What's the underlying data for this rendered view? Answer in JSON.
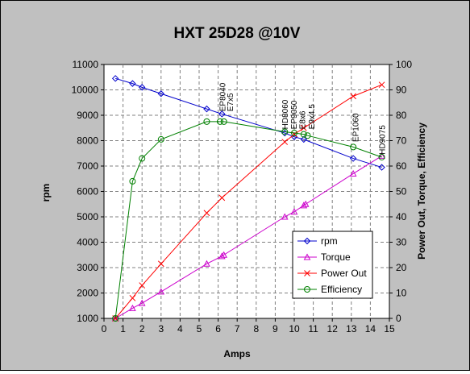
{
  "chart_data": {
    "type": "line",
    "title": "HXT 25D28 @10V",
    "xlabel": "Amps",
    "ylabel": "rpm",
    "y2label": "Power Out, Torque, Efficiency",
    "xlim": [
      0,
      15
    ],
    "ylim": [
      1000,
      11000
    ],
    "y2lim": [
      0,
      100
    ],
    "xticks": [
      "0",
      "1",
      "2",
      "3",
      "4",
      "5",
      "6",
      "7",
      "8",
      "9",
      "10",
      "11",
      "12",
      "13",
      "14",
      "15"
    ],
    "yticks": [
      "1000",
      "2000",
      "3000",
      "4000",
      "5000",
      "6000",
      "7000",
      "8000",
      "9000",
      "10000",
      "11000"
    ],
    "y2ticks": [
      "0",
      "10",
      "20",
      "30",
      "40",
      "50",
      "60",
      "70",
      "80",
      "90",
      "100"
    ],
    "grid": true,
    "legend_position": "lower-right",
    "colors": {
      "background": "#c0c0c0",
      "plot_area": "#ffffff",
      "rpm": "#0000cc",
      "torque": "#cc00cc",
      "power_out": "#ff0000",
      "efficiency": "#008000"
    },
    "series": [
      {
        "name": "rpm",
        "axis": "left",
        "marker": "diamond",
        "x": [
          0.6,
          1.5,
          2.0,
          3.0,
          5.4,
          6.2,
          9.5,
          10.0,
          10.5,
          13.1,
          14.6
        ],
        "y": [
          10450,
          10250,
          10100,
          9850,
          9250,
          9050,
          8300,
          8150,
          8050,
          7300,
          6950
        ]
      },
      {
        "name": "Torque",
        "axis": "right",
        "marker": "triangle",
        "x": [
          0.6,
          1.5,
          2.0,
          3.0,
          5.4,
          6.2,
          6.3,
          9.5,
          10.0,
          10.5,
          10.6,
          13.1,
          14.6
        ],
        "y": [
          0,
          4,
          6,
          10.5,
          21.5,
          24.5,
          25,
          40,
          42,
          44.5,
          45,
          57,
          64
        ]
      },
      {
        "name": "Power Out",
        "axis": "right",
        "marker": "x",
        "x": [
          0.6,
          1.5,
          2.0,
          3.0,
          5.4,
          6.2,
          9.5,
          10.0,
          10.5,
          13.1,
          14.6
        ],
        "y": [
          0,
          8,
          13,
          21.5,
          41.5,
          47.5,
          69.5,
          72.5,
          75,
          87.5,
          92
        ]
      },
      {
        "name": "Efficiency",
        "axis": "right",
        "marker": "circle",
        "x": [
          0.6,
          1.5,
          2.0,
          3.0,
          5.4,
          6.1,
          6.3,
          9.5,
          10.0,
          10.5,
          10.7,
          13.1,
          14.6
        ],
        "y": [
          0,
          54,
          63,
          70.5,
          77.5,
          77.5,
          77.5,
          73.5,
          73,
          72.5,
          72,
          67.5,
          63.5
        ]
      }
    ],
    "annotations": [
      {
        "text": "EP8040",
        "x": 6.2,
        "y": 81.5
      },
      {
        "text": "E7x5",
        "x": 6.6,
        "y": 81.5
      },
      {
        "text": "HD8060",
        "x": 9.5,
        "y": 74.5
      },
      {
        "text": "EP9050",
        "x": 9.95,
        "y": 74.5
      },
      {
        "text": "E8x6",
        "x": 10.4,
        "y": 74.5
      },
      {
        "text": "E9x4.5",
        "x": 10.9,
        "y": 74.5
      },
      {
        "text": "EP1060",
        "x": 13.2,
        "y": 69.5
      },
      {
        "text": "HD9075",
        "x": 14.6,
        "y": 64.5
      }
    ]
  }
}
